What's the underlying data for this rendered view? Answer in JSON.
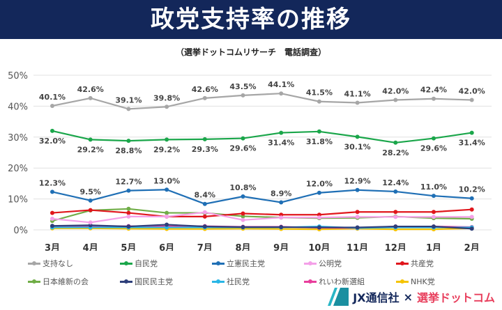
{
  "chart_data": {
    "type": "line",
    "title": "政党支持率の推移",
    "subtitle": "（選挙ドットコムリサーチ　電話調査）",
    "categories": [
      "3月",
      "4月",
      "5月",
      "6月",
      "7月",
      "8月",
      "9月",
      "10月",
      "11月",
      "12月",
      "1月",
      "2月"
    ],
    "yticks": [
      "0%",
      "10%",
      "20%",
      "30%",
      "40%",
      "50%"
    ],
    "ylim": [
      0,
      50
    ],
    "grid": true,
    "legend": "bottom",
    "series": [
      {
        "name": "支持なし",
        "color": "#a6a6a6",
        "values": [
          40.1,
          42.6,
          39.1,
          39.8,
          42.6,
          43.5,
          44.1,
          41.5,
          41.1,
          42.0,
          42.4,
          42.0
        ],
        "labels": [
          "40.1%",
          "42.6%",
          "39.1%",
          "39.8%",
          "42.6%",
          "43.5%",
          "44.1%",
          "41.5%",
          "41.1%",
          "42.0%",
          "42.4%",
          "42.0%"
        ],
        "label_pos": "above"
      },
      {
        "name": "自民党",
        "color": "#1aa64a",
        "values": [
          32.0,
          29.2,
          28.8,
          29.2,
          29.3,
          29.6,
          31.4,
          31.8,
          30.1,
          28.2,
          29.6,
          31.4
        ],
        "labels": [
          "32.0%",
          "29.2%",
          "28.8%",
          "29.2%",
          "29.3%",
          "29.6%",
          "31.4%",
          "31.8%",
          "30.1%",
          "28.2%",
          "29.6%",
          "31.4%"
        ],
        "label_pos": "below"
      },
      {
        "name": "立憲民主党",
        "color": "#1f6fb5",
        "values": [
          12.3,
          9.5,
          12.7,
          13.0,
          8.4,
          10.8,
          8.9,
          12.0,
          12.9,
          12.4,
          11.0,
          10.2
        ],
        "labels": [
          "12.3%",
          "9.5%",
          "12.7%",
          "13.0%",
          "8.4%",
          "10.8%",
          "8.9%",
          "12.0%",
          "12.9%",
          "12.4%",
          "11.0%",
          "10.2%"
        ],
        "label_pos": "above"
      },
      {
        "name": "公明党",
        "color": "#f4a0e8",
        "values": [
          3.6,
          2.4,
          4.3,
          4.3,
          5.7,
          3.2,
          4.0,
          4.0,
          4.2,
          4.2,
          4.2,
          4.2
        ]
      },
      {
        "name": "共産党",
        "color": "#e0161c",
        "values": [
          5.5,
          6.4,
          5.5,
          4.3,
          4.3,
          5.3,
          4.9,
          4.9,
          5.8,
          5.8,
          5.8,
          6.6
        ]
      },
      {
        "name": "日本維新の会",
        "color": "#70ad47",
        "values": [
          2.9,
          6.3,
          6.8,
          5.5,
          5.5,
          4.4,
          4.0,
          3.8,
          3.9,
          4.3,
          3.8,
          3.6
        ]
      },
      {
        "name": "国民民主党",
        "color": "#2e3f7a",
        "values": [
          1.3,
          1.5,
          1.1,
          1.7,
          1.1,
          0.9,
          0.9,
          0.8,
          0.8,
          1.1,
          1.1,
          0.4
        ]
      },
      {
        "name": "社民党",
        "color": "#29b6e6",
        "values": [
          0.8,
          0.8,
          0.8,
          0.8,
          0.8,
          0.8,
          0.8,
          1.1,
          0.6,
          0.8,
          0.8,
          0.8
        ]
      },
      {
        "name": "れいわ新選組",
        "color": "#e83e9c",
        "values": [
          1.0,
          1.2,
          1.2,
          1.2,
          1.2,
          1.0,
          1.0,
          0.7,
          0.6,
          1.1,
          1.1,
          0.9
        ]
      },
      {
        "name": "NHK党",
        "color": "#f5c400",
        "values": [
          0.5,
          0.5,
          0.4,
          0.3,
          0.3,
          0.4,
          0.3,
          0.2,
          0.4,
          0.2,
          0.2,
          0.5
        ]
      }
    ]
  },
  "logo": {
    "left": "JX通信社",
    "sep": "×",
    "right": "選挙ドットコム"
  }
}
